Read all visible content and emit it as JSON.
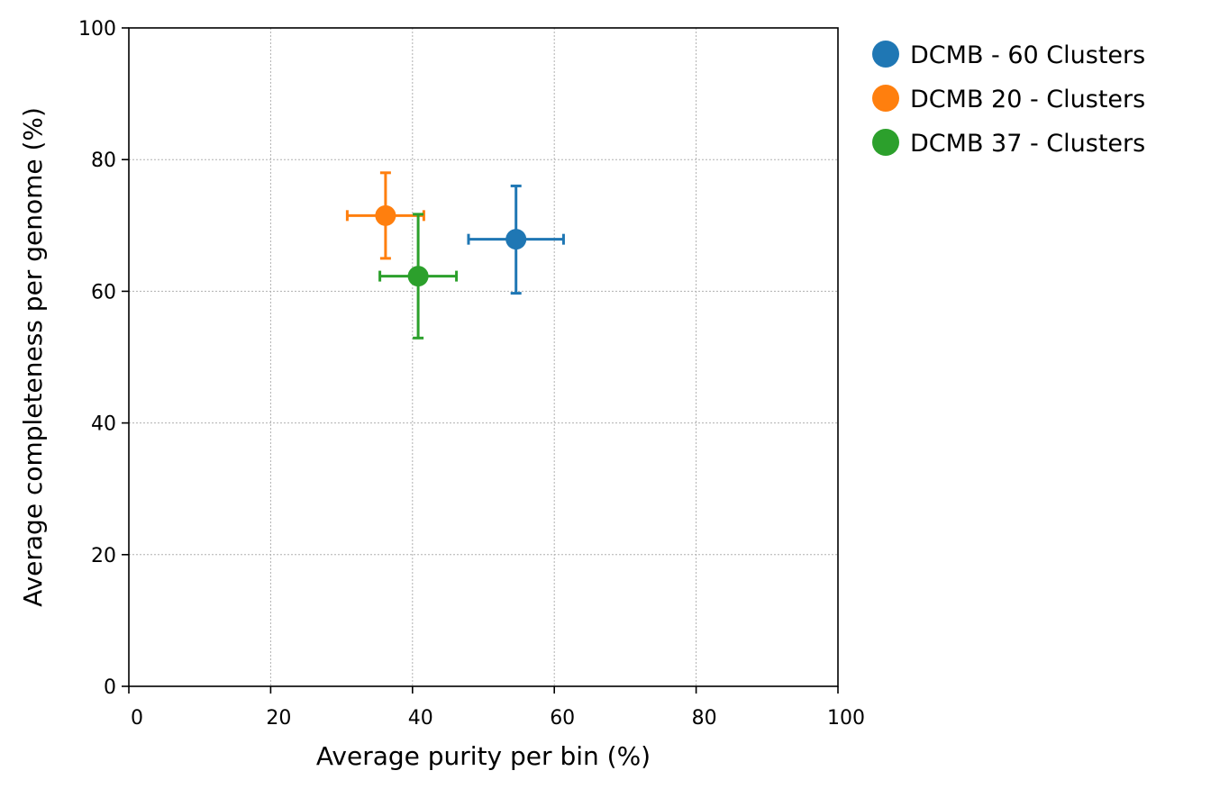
{
  "chart_data": {
    "type": "scatter",
    "xlabel": "Average purity per bin (%)",
    "ylabel": "Average completeness per genome (%)",
    "xlim": [
      0,
      100
    ],
    "ylim": [
      0,
      100
    ],
    "xticks": [
      0,
      20,
      40,
      60,
      80,
      100
    ],
    "yticks": [
      0,
      20,
      40,
      60,
      80,
      100
    ],
    "grid": true,
    "legend_position": "outside-top-right",
    "series": [
      {
        "name": "DCMB - 60 Clusters",
        "color": "#1f77b4",
        "x": 54.6,
        "y": 67.9,
        "x_err": [
          6.7,
          6.7
        ],
        "y_err": [
          8.2,
          8.1
        ]
      },
      {
        "name": "DCMB 20 - Clusters",
        "color": "#ff7f0e",
        "x": 36.2,
        "y": 71.5,
        "x_err": [
          5.4,
          5.4
        ],
        "y_err": [
          6.5,
          6.5
        ]
      },
      {
        "name": "DCMB 37 - Clusters",
        "color": "#2ca02c",
        "x": 40.8,
        "y": 62.3,
        "x_err": [
          5.4,
          5.4
        ],
        "y_err": [
          9.4,
          9.4
        ]
      }
    ]
  }
}
